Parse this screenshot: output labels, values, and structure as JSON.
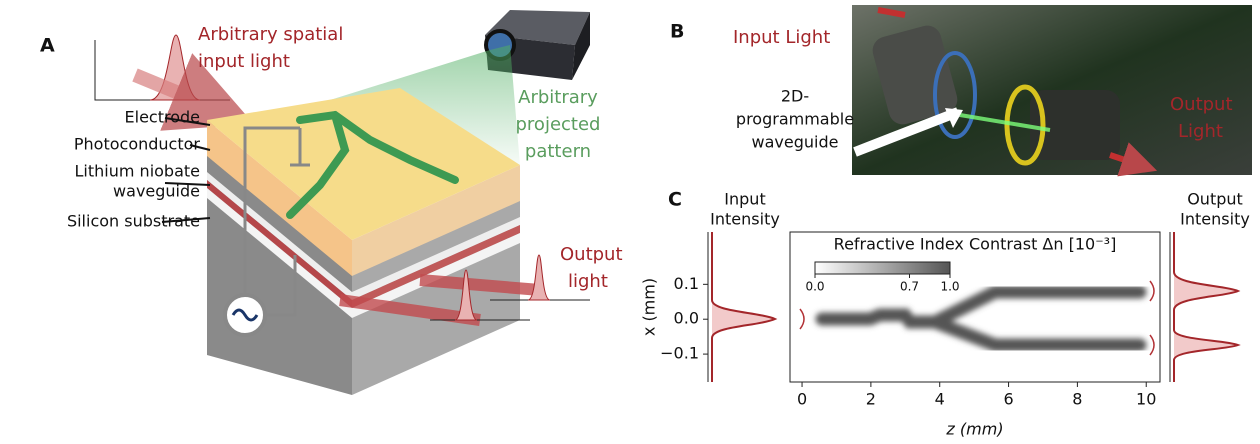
{
  "panels": {
    "a": {
      "label": "A",
      "input_light": [
        "Arbitrary spatial",
        "input light"
      ],
      "layers": {
        "electrode": "Electrode",
        "photoconductor": "Photoconductor",
        "waveguide": [
          "Lithium niobate",
          "waveguide"
        ],
        "substrate": "Silicon substrate"
      },
      "pattern": [
        "Arbitrary",
        "projected",
        "pattern"
      ],
      "output_light": [
        "Output",
        "light"
      ]
    },
    "b": {
      "label": "B",
      "input_light": "Input Light",
      "waveguide": [
        "2D-",
        "programmable",
        "waveguide"
      ],
      "output_light": [
        "Output",
        "Light"
      ]
    },
    "c": {
      "label": "C",
      "input_intensity": [
        "Input",
        "Intensity"
      ],
      "output_intensity": [
        "Output",
        "Intensity"
      ]
    }
  },
  "chart_data": {
    "type": "heatmap",
    "title": "Refractive Index Contrast Δn [10⁻³]",
    "x_label": "z (mm)",
    "y_label": "x (mm)",
    "xlim": [
      -0.35,
      10.4
    ],
    "xticks": [
      0,
      2,
      4,
      6,
      8,
      10
    ],
    "ylim": [
      -0.18,
      0.25
    ],
    "yticks": [
      {
        "value": -0.1,
        "label": "−0.1"
      },
      {
        "value": 0,
        "label": "0.0"
      },
      0.1
    ],
    "colorbar": {
      "lim": [
        0,
        1
      ],
      "ticks": [
        {
          "value": 0,
          "label": "0.0"
        },
        0.7,
        {
          "value": 1,
          "label": "1.0"
        }
      ]
    }
  }
}
